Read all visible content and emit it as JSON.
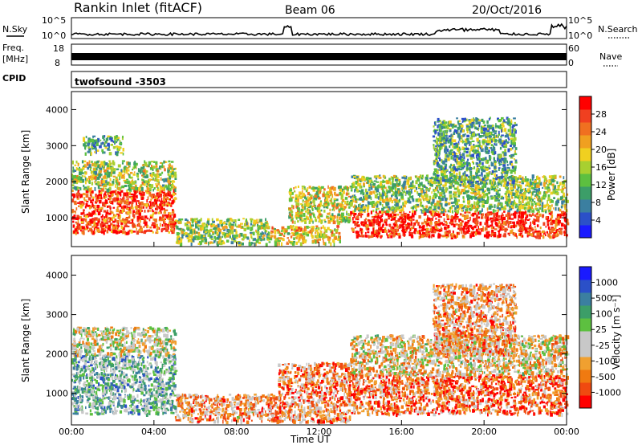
{
  "header": {
    "station": "Rankin Inlet (fitACF)",
    "beam": "Beam 06",
    "date": "20/Oct/2016"
  },
  "strip_panels": {
    "nsky_label": "N.Sky",
    "nsky_ticks": [
      "10^5",
      "10^0"
    ],
    "nsearch_label": "N.Search",
    "nsearch_ticks": [
      "10^5",
      "10^0"
    ],
    "freq_label_top": "Freq.",
    "freq_label_bottom": "[MHz]",
    "freq_ticks": [
      "18",
      "8"
    ],
    "nave_label": "Nave",
    "nave_ticks": [
      "60",
      "0"
    ],
    "cpid_label": "CPID",
    "cpid_text": "twofsound  -3503"
  },
  "chart_data": [
    {
      "type": "heatmap",
      "name": "power",
      "ylabel": "Slant Range [km]",
      "xlabel": "",
      "ylim": [
        200,
        4500
      ],
      "yticks": [
        "4000",
        "3000",
        "2000",
        "1000"
      ],
      "xlim": [
        0,
        24
      ],
      "colorbar_label": "Power [dB]",
      "colorbar_ticks": [
        "28",
        "24",
        "20",
        "16",
        "12",
        "8",
        "4"
      ],
      "colors": [
        "#1a1aff",
        "#2b50c8",
        "#3b7fa0",
        "#3c9e68",
        "#5dc040",
        "#a8d030",
        "#f0d020",
        "#f0a020",
        "#f07020",
        "#f04020",
        "#ff0000"
      ],
      "regions": [
        {
          "t0": 0.0,
          "t1": 5.0,
          "r0": 600,
          "r1": 1800,
          "level": 0.85
        },
        {
          "t0": 0.0,
          "t1": 5.0,
          "r0": 1800,
          "r1": 2600,
          "level": 0.5
        },
        {
          "t0": 0.5,
          "t1": 2.5,
          "r0": 2800,
          "r1": 3300,
          "level": 0.35
        },
        {
          "t0": 5.0,
          "t1": 9.5,
          "r0": 300,
          "r1": 1000,
          "level": 0.45
        },
        {
          "t0": 9.5,
          "t1": 13.0,
          "r0": 300,
          "r1": 800,
          "level": 0.6
        },
        {
          "t0": 10.5,
          "t1": 13.5,
          "r0": 900,
          "r1": 1900,
          "level": 0.55
        },
        {
          "t0": 13.5,
          "t1": 24.0,
          "r0": 500,
          "r1": 1200,
          "level": 0.92
        },
        {
          "t0": 13.5,
          "t1": 24.0,
          "r0": 1200,
          "r1": 2200,
          "level": 0.45
        },
        {
          "t0": 17.5,
          "t1": 21.5,
          "r0": 2000,
          "r1": 3800,
          "level": 0.35
        }
      ]
    },
    {
      "type": "heatmap",
      "name": "velocity",
      "ylabel": "Slant Range [km]",
      "xlabel": "Time UT",
      "ylim": [
        200,
        4500
      ],
      "yticks": [
        "4000",
        "3000",
        "2000",
        "1000"
      ],
      "xlim": [
        0,
        24
      ],
      "xticks": [
        "00:00",
        "04:00",
        "08:00",
        "12:00",
        "16:00",
        "20:00",
        "00:00"
      ],
      "colorbar_label": "Velocity [m s⁻¹]",
      "colorbar_ticks": [
        "1000",
        "500",
        "100",
        "25",
        "-25",
        "-100",
        "-500",
        "-1000"
      ],
      "colors": [
        "#ff0000",
        "#f04a10",
        "#f07a10",
        "#f0a030",
        "#c8c8c8",
        "#c8c8c8",
        "#5dc040",
        "#3c9e68",
        "#3b7fa0",
        "#2b50c8",
        "#1a1aff"
      ],
      "regions": [
        {
          "t0": 0.0,
          "t1": 5.0,
          "r0": 500,
          "r1": 2000,
          "level": 0.62
        },
        {
          "t0": 0.0,
          "t1": 5.0,
          "r0": 2000,
          "r1": 2700,
          "level": 0.45
        },
        {
          "t0": 5.0,
          "t1": 10.0,
          "r0": 300,
          "r1": 1000,
          "level": 0.3
        },
        {
          "t0": 10.0,
          "t1": 13.5,
          "r0": 300,
          "r1": 1800,
          "level": 0.25
        },
        {
          "t0": 13.5,
          "t1": 24.0,
          "r0": 500,
          "r1": 1500,
          "level": 0.2
        },
        {
          "t0": 13.5,
          "t1": 24.0,
          "r0": 1500,
          "r1": 2500,
          "level": 0.4
        },
        {
          "t0": 17.5,
          "t1": 21.5,
          "r0": 2000,
          "r1": 3800,
          "level": 0.3
        }
      ]
    }
  ]
}
